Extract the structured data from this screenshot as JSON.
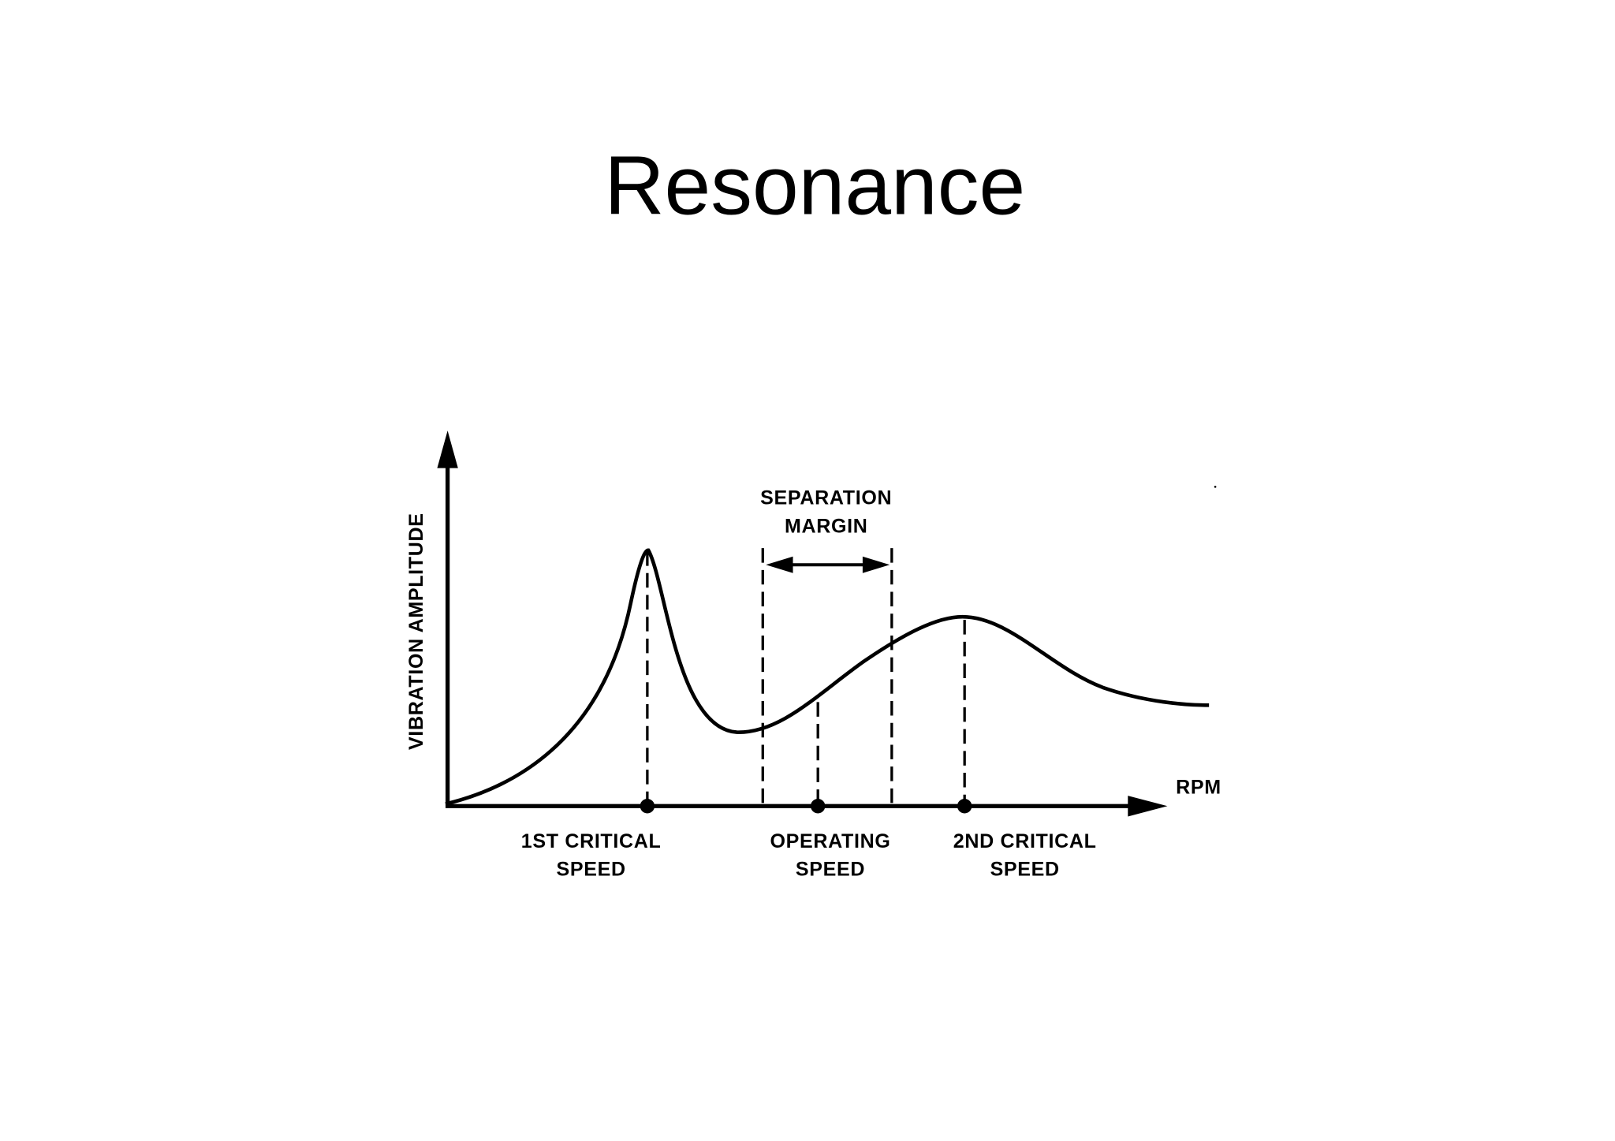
{
  "title": "Resonance",
  "diagram": {
    "y_axis_label": "VIBRATION AMPLITUDE",
    "x_axis_label": "RPM",
    "separation_margin": [
      "SEPARATION",
      "MARGIN"
    ],
    "markers": [
      {
        "label": [
          "1ST CRITICAL",
          "SPEED"
        ]
      },
      {
        "label": [
          "OPERATING",
          "SPEED"
        ]
      },
      {
        "label": [
          "2ND CRITICAL",
          "SPEED"
        ]
      }
    ]
  }
}
